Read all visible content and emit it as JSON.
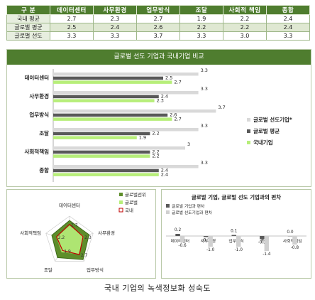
{
  "table": {
    "headers": [
      "구  분",
      "데이터센터",
      "사무환경",
      "업무방식",
      "조달",
      "사회적 책임",
      "종합"
    ],
    "rows": [
      {
        "label": "국내 평균",
        "values": [
          "2.7",
          "2.3",
          "2.7",
          "1.9",
          "2.2",
          "2.4"
        ]
      },
      {
        "label": "글로벌 평균",
        "values": [
          "2.5",
          "2.4",
          "2.6",
          "2.2",
          "2.2",
          "2.4"
        ]
      },
      {
        "label": "글로벌 선도",
        "values": [
          "3.3",
          "3.3",
          "3.7",
          "3.3",
          "3.0",
          "3.3"
        ]
      }
    ]
  },
  "colors": {
    "header_green": "#4f7d2f",
    "series_leader": "#d9d9d9",
    "series_global": "#595959",
    "series_domestic": "#b7ee7a",
    "radar_fill": "#5e8e2b",
    "radar_domestic": "#c00000"
  },
  "chart_data": [
    {
      "type": "bar",
      "orientation": "horizontal",
      "title": "글로벌 선도 기업과 국내기업 비교",
      "categories": [
        "데이터센터",
        "사무환경",
        "업무방식",
        "조달",
        "사회적책임",
        "종합"
      ],
      "series": [
        {
          "name": "글로벌 선도기업*",
          "values": [
            3.3,
            3.3,
            3.7,
            3.3,
            3.0,
            3.3
          ],
          "labels": [
            "3.3",
            "3.3",
            "3.7",
            "3.3",
            "3",
            "3.3"
          ]
        },
        {
          "name": "글로벌 평균",
          "values": [
            2.5,
            2.4,
            2.6,
            2.2,
            2.2,
            2.4
          ],
          "labels": [
            "2.5",
            "2.4",
            "2.6",
            "2.2",
            "2.2",
            "2.4"
          ]
        },
        {
          "name": "국내기업",
          "values": [
            2.7,
            2.3,
            2.7,
            1.9,
            2.2,
            2.4
          ],
          "labels": [
            "2.7",
            "2.3",
            "2.7",
            "1.9",
            "2.2",
            "2.4"
          ]
        }
      ],
      "legend": "right"
    },
    {
      "type": "radar",
      "categories": [
        "데이터센터",
        "사무환경",
        "업무방식",
        "조달",
        "사회적책임"
      ],
      "series": [
        {
          "name": "글로벌선위",
          "values": [
            3.3,
            3.3,
            3.7,
            3.3,
            3.0
          ]
        },
        {
          "name": "글로벌",
          "values": [
            2.5,
            2.4,
            2.6,
            2.2,
            2.2
          ]
        },
        {
          "name": "국내",
          "values": [
            2.7,
            2.3,
            2.7,
            1.9,
            2.2
          ]
        }
      ],
      "ticks": [
        "2.7",
        "2.3",
        "2.7",
        "1.9",
        "2.2"
      ],
      "legend": "top-right"
    },
    {
      "type": "bar",
      "title": "글로벌 기업, 글로벌 선도 기업과의 편차",
      "categories": [
        "데이터센터",
        "사무환경",
        "업무방식",
        "조달",
        "사회적책임"
      ],
      "series": [
        {
          "name": "글로벌 기업과 편차",
          "values": [
            0.2,
            -0.1,
            0.1,
            -0.3,
            0.0
          ],
          "labels": [
            "0.2",
            "-0.1",
            "0.1",
            "-0.3",
            "0.0"
          ]
        },
        {
          "name": "글로벌 선도기업과 편차",
          "values": [
            -0.6,
            -1.0,
            -1.0,
            -1.4,
            -0.8
          ],
          "labels": [
            "-0.6",
            "-1.0",
            "-1.0",
            "-1.4",
            "-0.8"
          ]
        }
      ],
      "legend": "top-left"
    }
  ],
  "caption": "국내 기업의 녹색정보화 성숙도"
}
